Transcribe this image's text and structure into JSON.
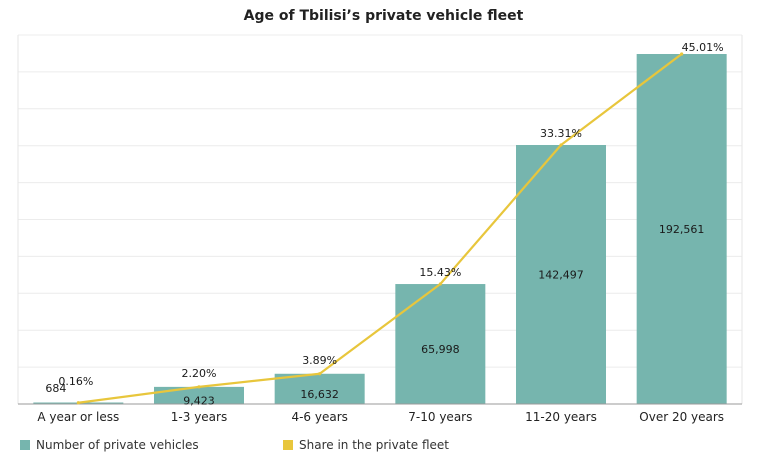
{
  "chart_data": {
    "type": "bar",
    "title": "Age of Tbilisi’s private vehicle fleet",
    "categories": [
      "A year or less",
      "1-3 years",
      "4-6 years",
      "7-10 years",
      "11-20 years",
      "Over 20 years"
    ],
    "series": [
      {
        "name": "Number of private vehicles",
        "type": "bar",
        "color": "#76b5ae",
        "values": [
          684,
          9423,
          16632,
          65998,
          142497,
          192561
        ],
        "labels": [
          "684",
          "9,423",
          "16,632",
          "65,998",
          "142,497",
          "192,561"
        ]
      },
      {
        "name": "Share in the private fleet",
        "type": "line",
        "color": "#e8c63c",
        "values": [
          0.16,
          2.2,
          3.89,
          15.43,
          33.31,
          45.01
        ],
        "labels": [
          "0.16%",
          "2.20%",
          "3.89%",
          "15.43%",
          "33.31%",
          "45.01%"
        ]
      }
    ],
    "ylim": [
      0,
      200000
    ],
    "ylim_secondary": [
      0,
      45.01
    ],
    "grid": true,
    "legend": "bottom-left"
  }
}
